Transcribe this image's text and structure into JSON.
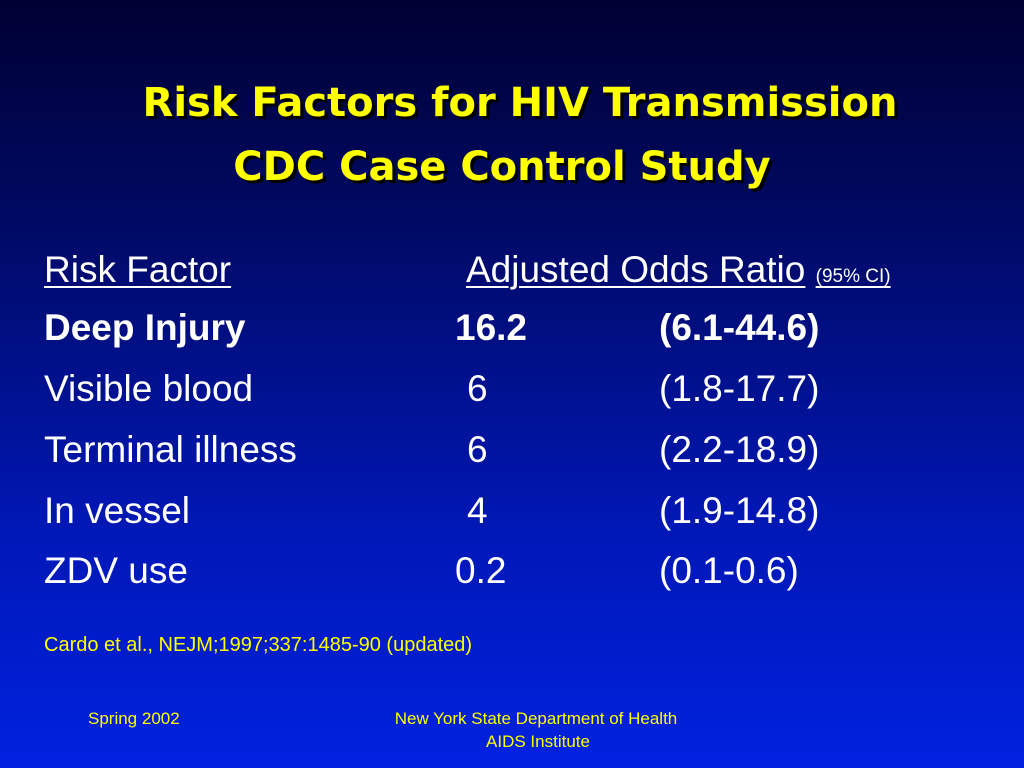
{
  "title": {
    "line1": "Risk Factors for HIV Transmission",
    "line2": "CDC Case Control Study"
  },
  "header": {
    "risk_factor": "Risk Factor",
    "odds_ratio": "Adjusted Odds Ratio",
    "ci": "(95% CI)"
  },
  "rows": [
    {
      "factor": "Deep Injury",
      "ratio": "16.2",
      "ci": "(6.1-44.6)"
    },
    {
      "factor": "Visible blood",
      "ratio": "6",
      "ci": "(1.8-17.7)"
    },
    {
      "factor": "Terminal illness",
      "ratio": "6",
      "ci": "(2.2-18.9)"
    },
    {
      "factor": "In vessel",
      "ratio": "4",
      "ci": "(1.9-14.8)"
    },
    {
      "factor": "ZDV use",
      "ratio": "0.2",
      "ci": "(0.1-0.6)"
    }
  ],
  "citation": "Cardo et al., NEJM;1997;337:1485-90 (updated)",
  "footer": {
    "date": "Spring 2002",
    "org_line1": "New York State Department of Health",
    "org_line2": "AIDS Institute"
  },
  "colors": {
    "title": "#ffff00",
    "body_text": "#ffffff",
    "background_top": "#000033",
    "background_bottom": "#0022e0"
  }
}
